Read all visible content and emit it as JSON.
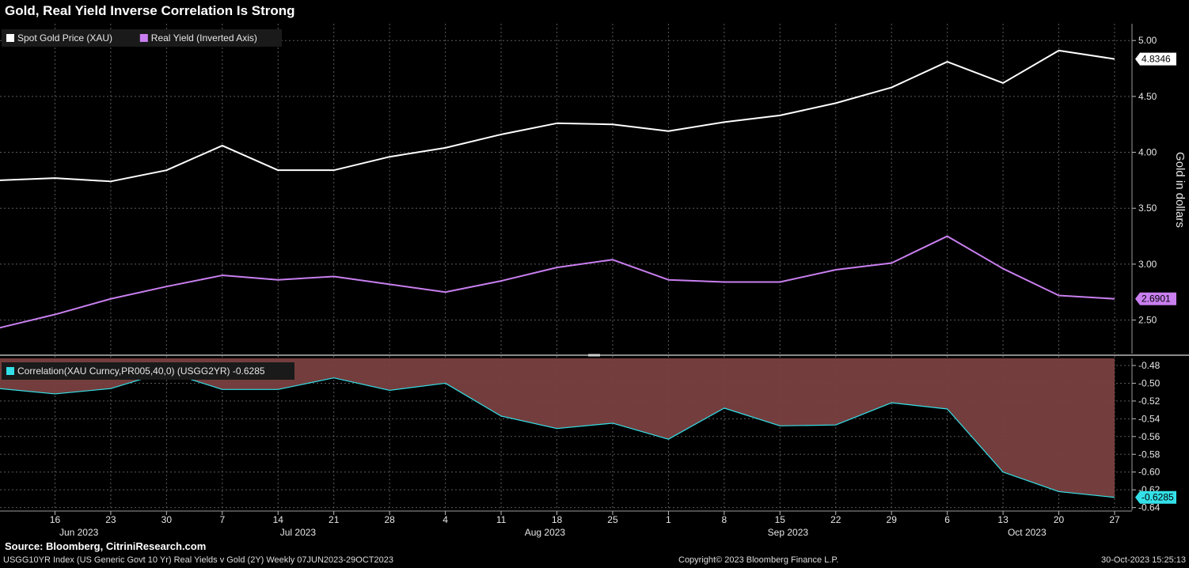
{
  "title": "Gold, Real Yield Inverse Correlation Is Strong",
  "footer": {
    "source": "Source: Bloomberg, CitriniResearch.com",
    "description": "USGG10YR Index (US Generic Govt 10 Yr) Real Yields v Gold (2Y)  Weekly 07JUN2023-29OCT2023",
    "copyright": "Copyright© 2023 Bloomberg Finance L.P.",
    "timestamp": "30-Oct-2023 15:25:13"
  },
  "colors": {
    "background": "#000000",
    "gold_line": "#ffffff",
    "real_yield_line": "#c97ff0",
    "correlation_line": "#33e0e8",
    "correlation_fill": "#7a4040",
    "grid": "#5a5a5a"
  },
  "chart_data": [
    {
      "type": "line",
      "legend": [
        {
          "label": "Spot Gold Price (XAU)",
          "color": "#ffffff"
        },
        {
          "label": "Real Yield (Inverted Axis)",
          "color": "#c97ff0"
        }
      ],
      "x": [
        "2023-06-09",
        "2023-06-16",
        "2023-06-23",
        "2023-06-30",
        "2023-07-07",
        "2023-07-14",
        "2023-07-21",
        "2023-07-28",
        "2023-08-04",
        "2023-08-11",
        "2023-08-18",
        "2023-08-25",
        "2023-09-01",
        "2023-09-08",
        "2023-09-15",
        "2023-09-22",
        "2023-09-29",
        "2023-10-06",
        "2023-10-13",
        "2023-10-20",
        "2023-10-27"
      ],
      "series": [
        {
          "name": "Spot Gold Price (XAU)",
          "color": "#ffffff",
          "values": [
            3.75,
            3.77,
            3.74,
            3.84,
            4.06,
            3.84,
            3.84,
            3.96,
            4.04,
            4.16,
            4.26,
            4.25,
            4.19,
            4.27,
            4.33,
            4.44,
            4.58,
            4.81,
            4.62,
            4.91,
            4.8346
          ]
        },
        {
          "name": "Real Yield (Inverted Axis)",
          "color": "#c97ff0",
          "values": [
            2.43,
            2.55,
            2.69,
            2.8,
            2.9,
            2.86,
            2.89,
            2.82,
            2.75,
            2.85,
            2.97,
            3.04,
            2.86,
            2.84,
            2.84,
            2.95,
            3.01,
            3.25,
            2.96,
            2.72,
            2.6901
          ]
        }
      ],
      "last_values": [
        {
          "label": "4.8346",
          "color": "#ffffff"
        },
        {
          "label": "2.6901",
          "color": "#c97ff0"
        }
      ],
      "ylabel": "Gold in dollars",
      "ylim": [
        2.2,
        5.15
      ],
      "yticks": [
        "5.00",
        "4.50",
        "4.00",
        "3.50",
        "3.00",
        "2.50"
      ],
      "grid": true
    },
    {
      "type": "area",
      "legend": [
        {
          "label": "Correlation(XAU Curncy,PR005,40,0) (USGG2YR) -0.6285",
          "color": "#33e0e8"
        }
      ],
      "x": [
        "2023-06-09",
        "2023-06-16",
        "2023-06-23",
        "2023-06-30",
        "2023-07-07",
        "2023-07-14",
        "2023-07-21",
        "2023-07-28",
        "2023-08-04",
        "2023-08-11",
        "2023-08-18",
        "2023-08-25",
        "2023-09-01",
        "2023-09-08",
        "2023-09-15",
        "2023-09-22",
        "2023-09-29",
        "2023-10-06",
        "2023-10-13",
        "2023-10-20",
        "2023-10-27"
      ],
      "series": [
        {
          "name": "Correlation(XAU Curncy,PR005,40,0) (USGG2YR)",
          "color": "#33e0e8",
          "values": [
            -0.506,
            -0.512,
            -0.506,
            -0.487,
            -0.507,
            -0.507,
            -0.494,
            -0.508,
            -0.5,
            -0.537,
            -0.551,
            -0.545,
            -0.563,
            -0.528,
            -0.548,
            -0.547,
            -0.522,
            -0.529,
            -0.6,
            -0.622,
            -0.6285
          ]
        }
      ],
      "last_values": [
        {
          "label": "-0.6285",
          "color": "#33e0e8"
        }
      ],
      "ylim": [
        -0.643,
        -0.472
      ],
      "yticks": [
        "-0.48",
        "-0.50",
        "-0.52",
        "-0.54",
        "-0.56",
        "-0.58",
        "-0.60",
        "-0.62",
        "-0.64"
      ],
      "grid": true
    }
  ],
  "x_axis": {
    "day_ticks": [
      "16",
      "23",
      "30",
      "7",
      "14",
      "21",
      "28",
      "4",
      "11",
      "18",
      "25",
      "1",
      "8",
      "15",
      "22",
      "29",
      "6",
      "13",
      "20",
      "27"
    ],
    "month_labels": [
      "Jun 2023",
      "Jul 2023",
      "Aug 2023",
      "Sep 2023",
      "Oct 2023"
    ]
  }
}
